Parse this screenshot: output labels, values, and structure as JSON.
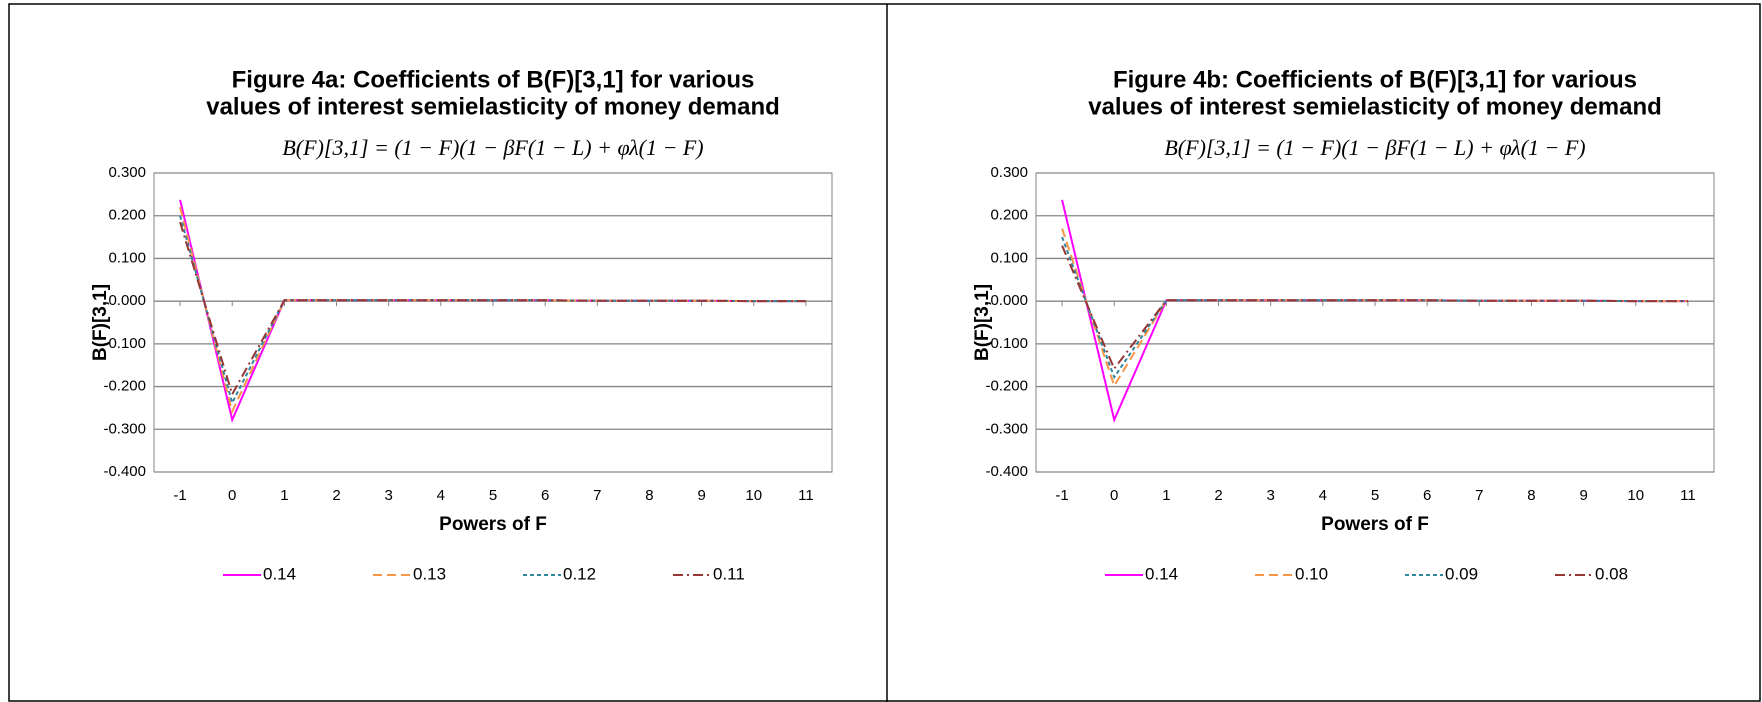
{
  "chart_data": [
    {
      "type": "line",
      "title": [
        "Figure 4a: Coefficients of B(F)[3,1] for various",
        "values of interest semielasticity of money demand"
      ],
      "equation": "B(F)[3,1] = (1 − F)(1 − βF(1 − L) + φλ(1 − F)",
      "xlabel": "Powers of F",
      "ylabel": "B(F)[3,1]",
      "x": [
        -1,
        0,
        1,
        2,
        3,
        4,
        5,
        6,
        7,
        8,
        9,
        10,
        11
      ],
      "xlim": [
        -1.5,
        11.5
      ],
      "xticks": [
        -1,
        0,
        1,
        2,
        3,
        4,
        5,
        6,
        7,
        8,
        9,
        10,
        11
      ],
      "ylim": [
        -0.4,
        0.3
      ],
      "yticks": [
        {
          "value": -0.4,
          "label": "-0.400"
        },
        {
          "value": -0.3,
          "label": "-0.300"
        },
        {
          "value": -0.2,
          "label": "-0.200"
        },
        {
          "value": -0.1,
          "label": "-0.100"
        },
        {
          "value": 0,
          "label": "0.000"
        },
        {
          "value": 0.1,
          "label": "0.100"
        },
        {
          "value": 0.2,
          "label": "0.200"
        },
        {
          "value": 0.3,
          "label": "0.300"
        }
      ],
      "grid": true,
      "legend": "bottom",
      "series": [
        {
          "name": "0.14",
          "color": "#ff00ff",
          "style": "solid",
          "values": [
            0.237,
            -0.278,
            0.002,
            0.002,
            0.002,
            0.002,
            0.002,
            0.002,
            0.001,
            0.001,
            0.001,
            0,
            0
          ]
        },
        {
          "name": "0.13",
          "color": "#f79646",
          "style": "dashed",
          "values": [
            0.22,
            -0.258,
            0.002,
            0.002,
            0.002,
            0.002,
            0.002,
            0.002,
            0.001,
            0.001,
            0.001,
            0,
            0
          ]
        },
        {
          "name": "0.12",
          "color": "#31859c",
          "style": "dotted",
          "values": [
            0.2,
            -0.238,
            0.002,
            0.002,
            0.002,
            0.002,
            0.002,
            0.002,
            0.001,
            0.001,
            0.001,
            0,
            0
          ]
        },
        {
          "name": "0.11",
          "color": "#953735",
          "style": "dashdot",
          "values": [
            0.185,
            -0.218,
            0.002,
            0.002,
            0.002,
            0.002,
            0.002,
            0.002,
            0.001,
            0.001,
            0.001,
            0,
            0
          ]
        }
      ]
    },
    {
      "type": "line",
      "title": [
        "Figure 4b: Coefficients of B(F)[3,1] for various",
        "values of interest semielasticity of money demand"
      ],
      "equation": "B(F)[3,1] = (1 − F)(1 − βF(1 − L) + φλ(1 − F)",
      "xlabel": "Powers of F",
      "ylabel": "B(F)[3,1]",
      "x": [
        -1,
        0,
        1,
        2,
        3,
        4,
        5,
        6,
        7,
        8,
        9,
        10,
        11
      ],
      "xlim": [
        -1.5,
        11.5
      ],
      "xticks": [
        -1,
        0,
        1,
        2,
        3,
        4,
        5,
        6,
        7,
        8,
        9,
        10,
        11
      ],
      "ylim": [
        -0.4,
        0.3
      ],
      "yticks": [
        {
          "value": -0.4,
          "label": "-0.400"
        },
        {
          "value": -0.3,
          "label": "-0.300"
        },
        {
          "value": -0.2,
          "label": "-0.200"
        },
        {
          "value": -0.1,
          "label": "-0.100"
        },
        {
          "value": 0,
          "label": "0.000"
        },
        {
          "value": 0.1,
          "label": "0.100"
        },
        {
          "value": 0.2,
          "label": "0.200"
        },
        {
          "value": 0.3,
          "label": "0.300"
        }
      ],
      "grid": true,
      "legend": "bottom",
      "series": [
        {
          "name": "0.14",
          "color": "#ff00ff",
          "style": "solid",
          "values": [
            0.237,
            -0.278,
            0.002,
            0.002,
            0.002,
            0.002,
            0.002,
            0.002,
            0.001,
            0.001,
            0.001,
            0,
            0
          ]
        },
        {
          "name": "0.10",
          "color": "#f79646",
          "style": "dashed",
          "values": [
            0.17,
            -0.198,
            0.002,
            0.002,
            0.002,
            0.002,
            0.002,
            0.002,
            0.001,
            0.001,
            0.001,
            0,
            0
          ]
        },
        {
          "name": "0.09",
          "color": "#31859c",
          "style": "dotted",
          "values": [
            0.15,
            -0.178,
            0.002,
            0.002,
            0.002,
            0.002,
            0.002,
            0.002,
            0.001,
            0.001,
            0.001,
            0,
            0
          ]
        },
        {
          "name": "0.08",
          "color": "#953735",
          "style": "dashdot",
          "values": [
            0.13,
            -0.158,
            0.002,
            0.002,
            0.002,
            0.002,
            0.002,
            0.002,
            0.001,
            0.001,
            0.001,
            0,
            0
          ]
        }
      ]
    }
  ]
}
